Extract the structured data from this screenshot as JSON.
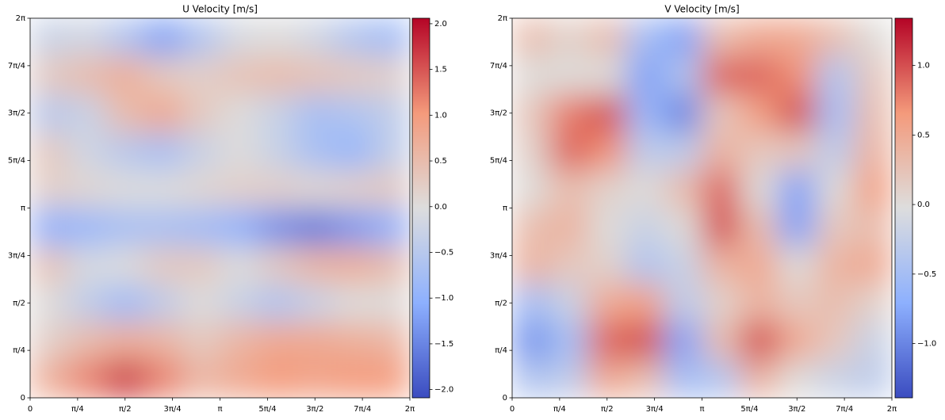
{
  "chart_data": [
    {
      "type": "heatmap",
      "title": "U Velocity [m/s]",
      "colormap": "coolwarm",
      "xlim": [
        0,
        6.283185
      ],
      "ylim": [
        0,
        6.283185
      ],
      "clim": [
        -2.09,
        2.06
      ],
      "xticks": [
        0,
        {
          "value": 0.785398,
          "label": "π/4"
        },
        {
          "value": 1.570796,
          "label": "π/2"
        },
        {
          "value": 2.356194,
          "label": "3π/4"
        },
        {
          "value": 3.141593,
          "label": "π"
        },
        {
          "value": 3.926991,
          "label": "5π/4"
        },
        {
          "value": 4.712389,
          "label": "3π/2"
        },
        {
          "value": 5.497787,
          "label": "7π/4"
        },
        {
          "value": 6.283185,
          "label": "2π"
        }
      ],
      "yticks": [
        0,
        {
          "value": 0.785398,
          "label": "π/4"
        },
        {
          "value": 1.570796,
          "label": "π/2"
        },
        {
          "value": 2.356194,
          "label": "3π/4"
        },
        {
          "value": 3.141593,
          "label": "π"
        },
        {
          "value": 3.926991,
          "label": "5π/4"
        },
        {
          "value": 4.712389,
          "label": "3π/2"
        },
        {
          "value": 5.497787,
          "label": "7π/4"
        },
        {
          "value": 6.283185,
          "label": "2π"
        }
      ],
      "cticks": [
        {
          "value": 2,
          "label": "2.0"
        },
        {
          "value": 1.5,
          "label": "1.5"
        },
        {
          "value": 1,
          "label": "1.0"
        },
        {
          "value": 0.5,
          "label": "0.5"
        },
        {
          "value": 0,
          "label": "0.0"
        },
        {
          "value": -0.5,
          "label": "−0.5"
        },
        {
          "value": -1,
          "label": "−1.0"
        },
        {
          "value": -1.5,
          "label": "−1.5"
        },
        {
          "value": -2,
          "label": "−2.0"
        }
      ],
      "z": [
        [
          0.7,
          1.2,
          1.7,
          1.2,
          0.6,
          0.8,
          1.0,
          0.9,
          1.0,
          1.0
        ],
        [
          0.2,
          0.5,
          0.7,
          0.6,
          0.3,
          0.6,
          0.8,
          0.8,
          0.7,
          0.6
        ],
        [
          0.0,
          -0.4,
          -0.8,
          -0.4,
          0.0,
          -0.3,
          -0.6,
          -0.3,
          0.0,
          0.0
        ],
        [
          0.4,
          -0.1,
          0.0,
          0.3,
          0.3,
          0.0,
          0.3,
          0.6,
          0.7,
          0.5
        ],
        [
          -1.0,
          -0.9,
          -0.7,
          -0.7,
          -0.8,
          -1.0,
          -1.4,
          -1.6,
          -1.3,
          -1.0
        ],
        [
          0.2,
          0.1,
          0.0,
          0.0,
          0.1,
          0.2,
          0.2,
          0.1,
          0.2,
          0.3
        ],
        [
          0.3,
          -0.2,
          -0.5,
          -0.7,
          -0.3,
          0.0,
          -0.3,
          -0.7,
          -0.9,
          -0.4
        ],
        [
          -0.5,
          -0.3,
          0.5,
          0.8,
          0.3,
          0.0,
          -0.3,
          -0.7,
          -0.6,
          -0.4
        ],
        [
          0.3,
          0.5,
          0.7,
          0.3,
          0.2,
          0.4,
          0.5,
          0.4,
          0.3,
          0.2
        ],
        [
          -0.3,
          -0.2,
          -0.6,
          -1.2,
          -0.6,
          -0.1,
          0.0,
          -0.2,
          -0.6,
          -0.8
        ]
      ]
    },
    {
      "type": "heatmap",
      "title": "V Velocity [m/s]",
      "colormap": "coolwarm",
      "xlim": [
        0,
        6.283185
      ],
      "ylim": [
        0,
        6.283185
      ],
      "clim": [
        -1.39,
        1.34
      ],
      "xticks": [
        0,
        {
          "value": 0.785398,
          "label": "π/4"
        },
        {
          "value": 1.570796,
          "label": "π/2"
        },
        {
          "value": 2.356194,
          "label": "3π/4"
        },
        {
          "value": 3.141593,
          "label": "π"
        },
        {
          "value": 3.926991,
          "label": "5π/4"
        },
        {
          "value": 4.712389,
          "label": "3π/2"
        },
        {
          "value": 5.497787,
          "label": "7π/4"
        },
        {
          "value": 6.283185,
          "label": "2π"
        }
      ],
      "yticks": [
        0,
        {
          "value": 0.785398,
          "label": "π/4"
        },
        {
          "value": 1.570796,
          "label": "π/2"
        },
        {
          "value": 2.356194,
          "label": "3π/4"
        },
        {
          "value": 3.141593,
          "label": "π"
        },
        {
          "value": 3.926991,
          "label": "5π/4"
        },
        {
          "value": 4.712389,
          "label": "3π/2"
        },
        {
          "value": 5.497787,
          "label": "7π/4"
        },
        {
          "value": 6.283185,
          "label": "2π"
        }
      ],
      "cticks": [
        {
          "value": 1,
          "label": "1.0"
        },
        {
          "value": 0.5,
          "label": "0.5"
        },
        {
          "value": 0,
          "label": "0.0"
        },
        {
          "value": -0.5,
          "label": "−0.5"
        },
        {
          "value": -1,
          "label": "−1.0"
        }
      ],
      "z": [
        [
          -0.4,
          -0.3,
          0.5,
          0.3,
          -0.5,
          -0.4,
          0.4,
          0.0,
          -0.2,
          -0.3
        ],
        [
          -0.9,
          -0.5,
          0.9,
          1.0,
          -0.8,
          0.3,
          1.0,
          0.5,
          0.2,
          -0.2
        ],
        [
          -0.5,
          -0.2,
          0.5,
          0.6,
          -0.3,
          0.1,
          0.4,
          0.2,
          0.3,
          0.1
        ],
        [
          0.4,
          0.2,
          0.1,
          -0.4,
          -0.2,
          0.4,
          0.5,
          0.0,
          0.4,
          0.5
        ],
        [
          0.3,
          0.4,
          0.0,
          -0.2,
          0.0,
          1.0,
          0.3,
          -0.8,
          0.2,
          0.3
        ],
        [
          0.0,
          0.3,
          0.1,
          0.0,
          0.3,
          0.9,
          0.0,
          -0.8,
          0.0,
          0.6
        ],
        [
          0.1,
          0.9,
          0.7,
          -0.3,
          -0.3,
          0.4,
          0.2,
          0.2,
          -0.3,
          0.4
        ],
        [
          0.2,
          0.8,
          1.0,
          -0.6,
          -1.0,
          0.2,
          0.6,
          1.0,
          -0.5,
          0.3
        ],
        [
          0.0,
          0.0,
          0.0,
          -0.8,
          -0.4,
          0.9,
          0.9,
          0.7,
          -0.4,
          0.2
        ],
        [
          0.3,
          0.1,
          0.3,
          -0.5,
          -0.8,
          0.3,
          0.5,
          0.5,
          0.3,
          0.0
        ]
      ]
    }
  ]
}
